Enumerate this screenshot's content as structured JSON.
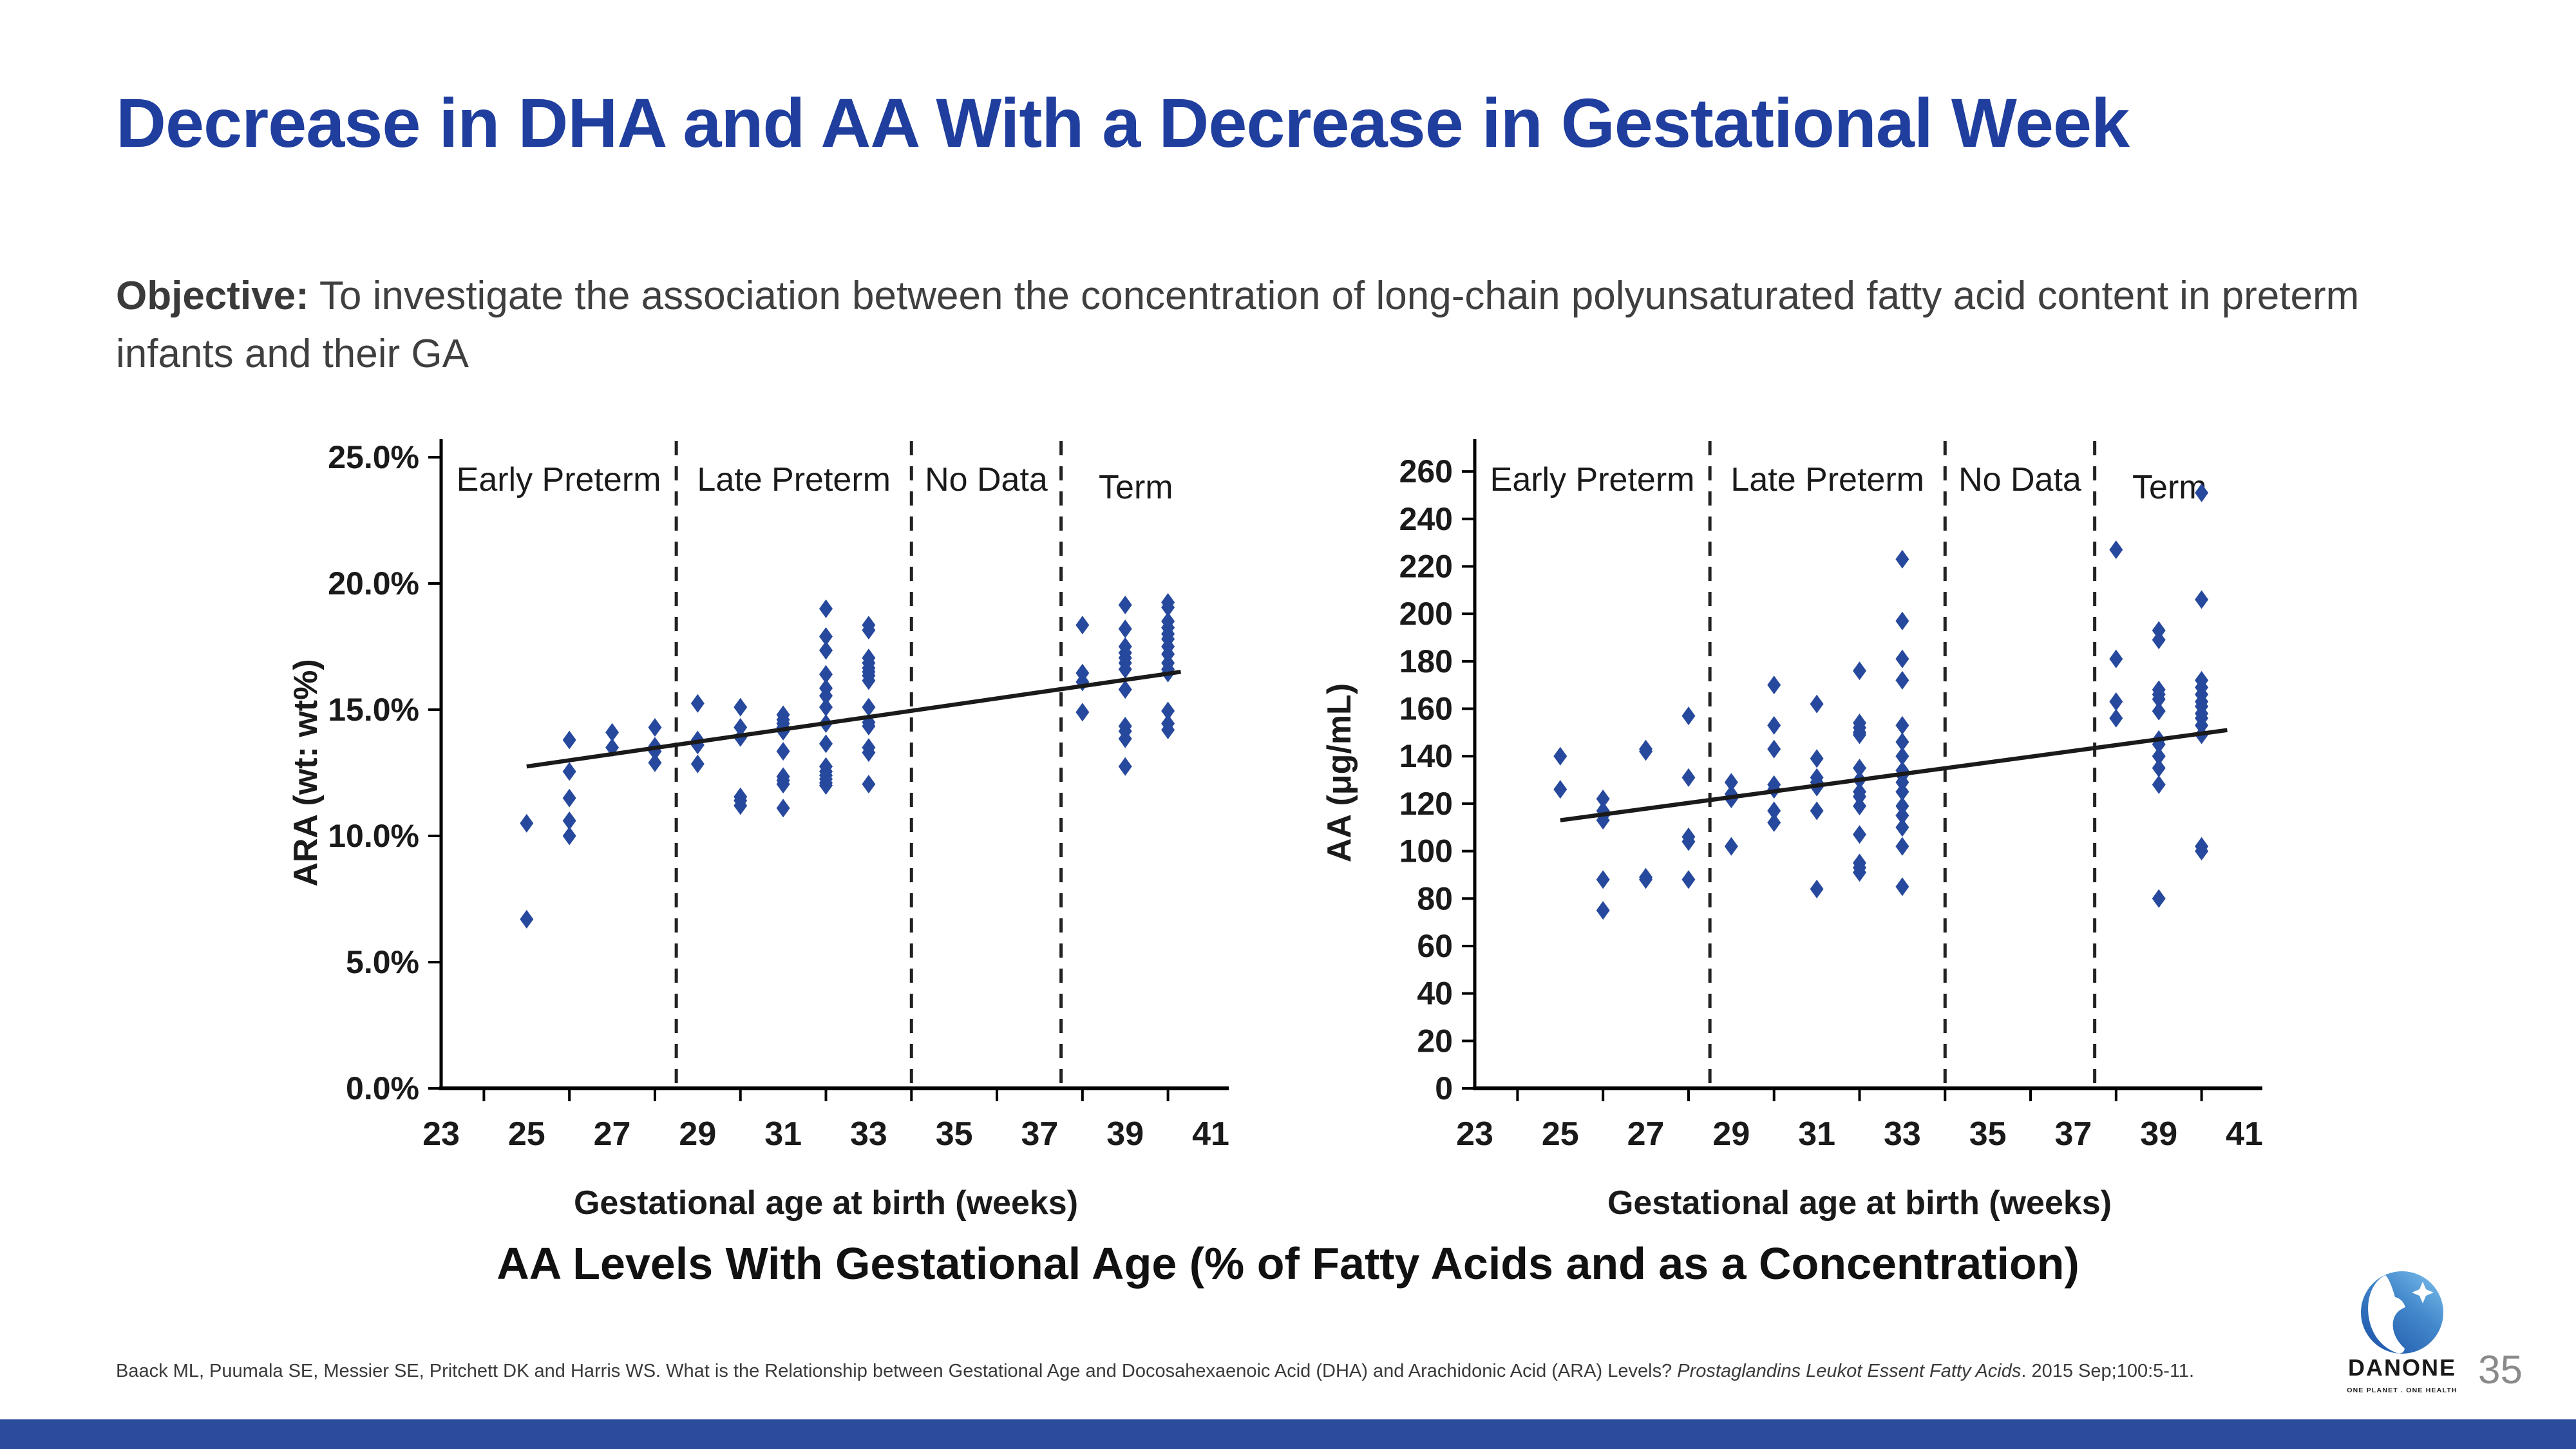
{
  "slide": {
    "title": "Decrease in DHA and AA With a Decrease in Gestational Week",
    "title_color": "#1F3E9E",
    "objective": {
      "label": "Objective:",
      "text": " To investigate the association between the concentration of long-chain polyunsaturated fatty acid content in preterm infants and their GA"
    },
    "caption": "AA Levels With Gestational Age (% of Fatty Acids and as a Concentration)",
    "citation": {
      "prefix": "Baack ML, Puumala SE, Messier SE, Pritchett DK and Harris WS. What is the Relationship between Gestational Age and Docosahexaenoic Acid (DHA) and Arachidonic Acid (ARA) Levels? ",
      "journal": "Prostaglandins Leukot Essent Fatty Acids",
      "suffix": ". 2015 Sep;100:5-11."
    },
    "page_number": "35",
    "footer_bar_color": "#2B4B9D"
  },
  "logo": {
    "brand": "DANONE",
    "tagline": "ONE PLANET . ONE HEALTH",
    "globe_top_color": "#7FC3EE",
    "globe_bottom_color": "#2058AC",
    "wordmark_color": "#2456A4",
    "tagline_color": "#3E9AD5"
  },
  "chart_data": [
    {
      "type": "scatter",
      "title": "",
      "xlabel": "Gestational age at birth (weeks)",
      "ylabel": "ARA (wt: wt%)",
      "xlim": [
        23,
        41
      ],
      "ylim": [
        0,
        25
      ],
      "xticks": [
        23,
        25,
        27,
        29,
        31,
        33,
        35,
        37,
        39,
        41
      ],
      "xtick_marks": [
        24,
        26,
        28,
        30,
        32,
        34,
        36,
        38,
        40
      ],
      "yticks": [
        {
          "v": 0,
          "label": "0.0%"
        },
        {
          "v": 5,
          "label": "5.0%"
        },
        {
          "v": 10,
          "label": "10.0%"
        },
        {
          "v": 15,
          "label": "15.0%"
        },
        {
          "v": 20,
          "label": "20.0%"
        },
        {
          "v": 25,
          "label": "25.0%"
        }
      ],
      "dividers": [
        28.5,
        34,
        37.5
      ],
      "regions": [
        {
          "label": "Early Preterm",
          "x": 25.75,
          "dy": 0
        },
        {
          "label": "Late Preterm",
          "x": 31.25,
          "dy": 0
        },
        {
          "label": "No Data",
          "x": 35.75,
          "dy": 0
        },
        {
          "label": "Term",
          "x": 39.25,
          "dy": 12
        }
      ],
      "trend": {
        "x1": 25,
        "y1": 12.75,
        "x2": 40.3,
        "y2": 16.5
      },
      "marker_color": "#27499D",
      "trend_color": "#1a1a1a",
      "grid": false,
      "legend": "none",
      "points": [
        [
          25,
          10.5
        ],
        [
          25,
          6.7
        ],
        [
          26,
          13.8
        ],
        [
          26,
          12.55
        ],
        [
          26,
          11.5
        ],
        [
          26,
          10.6
        ],
        [
          26,
          10.0
        ],
        [
          27,
          14.1
        ],
        [
          27,
          13.5
        ],
        [
          28,
          14.3
        ],
        [
          28,
          13.55
        ],
        [
          28,
          13.35
        ],
        [
          28,
          12.9
        ],
        [
          29,
          15.25
        ],
        [
          29,
          13.8
        ],
        [
          29,
          13.6
        ],
        [
          29,
          12.85
        ],
        [
          30,
          15.1
        ],
        [
          30,
          14.3
        ],
        [
          30,
          13.9
        ],
        [
          30,
          11.55
        ],
        [
          30,
          11.4
        ],
        [
          30,
          11.2
        ],
        [
          31,
          14.8
        ],
        [
          31,
          14.6
        ],
        [
          31,
          14.45
        ],
        [
          31,
          14.3
        ],
        [
          31,
          14.15
        ],
        [
          31,
          13.35
        ],
        [
          31,
          12.35
        ],
        [
          31,
          12.2
        ],
        [
          31,
          12.05
        ],
        [
          31,
          11.1
        ],
        [
          32,
          19.0
        ],
        [
          32,
          17.9
        ],
        [
          32,
          17.35
        ],
        [
          32,
          16.4
        ],
        [
          32,
          15.85
        ],
        [
          32,
          15.55
        ],
        [
          32,
          15.1
        ],
        [
          32,
          14.45
        ],
        [
          32,
          13.65
        ],
        [
          32,
          12.75
        ],
        [
          32,
          12.55
        ],
        [
          32,
          12.4
        ],
        [
          32,
          12.25
        ],
        [
          32,
          12.1
        ],
        [
          32,
          12.0
        ],
        [
          33,
          18.35
        ],
        [
          33,
          18.15
        ],
        [
          33,
          17.05
        ],
        [
          33,
          16.85
        ],
        [
          33,
          16.65
        ],
        [
          33,
          16.5
        ],
        [
          33,
          16.35
        ],
        [
          33,
          16.15
        ],
        [
          33,
          15.1
        ],
        [
          33,
          14.5
        ],
        [
          33,
          14.35
        ],
        [
          33,
          13.5
        ],
        [
          33,
          13.3
        ],
        [
          33,
          12.05
        ],
        [
          38,
          18.35
        ],
        [
          38,
          16.45
        ],
        [
          38,
          16.1
        ],
        [
          38,
          14.9
        ],
        [
          39,
          19.15
        ],
        [
          39,
          18.2
        ],
        [
          39,
          17.5
        ],
        [
          39,
          17.25
        ],
        [
          39,
          17.05
        ],
        [
          39,
          16.85
        ],
        [
          39,
          16.6
        ],
        [
          39,
          15.8
        ],
        [
          39,
          14.35
        ],
        [
          39,
          14.15
        ],
        [
          39,
          13.85
        ],
        [
          39,
          12.75
        ],
        [
          40,
          19.25
        ],
        [
          40,
          19.05
        ],
        [
          40,
          18.5
        ],
        [
          40,
          18.25
        ],
        [
          40,
          18.0
        ],
        [
          40,
          17.8
        ],
        [
          40,
          17.5
        ],
        [
          40,
          17.2
        ],
        [
          40,
          16.85
        ],
        [
          40,
          16.6
        ],
        [
          40,
          16.45
        ],
        [
          40,
          14.95
        ],
        [
          40,
          14.45
        ],
        [
          40,
          14.2
        ]
      ]
    },
    {
      "type": "scatter",
      "title": "",
      "xlabel": "Gestational age at birth (weeks)",
      "ylabel": "AA (μg/mL)",
      "xlim": [
        23,
        41
      ],
      "ylim": [
        0,
        266
      ],
      "xticks": [
        23,
        25,
        27,
        29,
        31,
        33,
        35,
        37,
        39,
        41
      ],
      "xtick_marks": [
        24,
        26,
        28,
        30,
        32,
        34,
        36,
        38,
        40
      ],
      "yticks": [
        {
          "v": 0,
          "label": "0"
        },
        {
          "v": 20,
          "label": "20"
        },
        {
          "v": 40,
          "label": "40"
        },
        {
          "v": 60,
          "label": "60"
        },
        {
          "v": 80,
          "label": "80"
        },
        {
          "v": 100,
          "label": "100"
        },
        {
          "v": 120,
          "label": "120"
        },
        {
          "v": 140,
          "label": "140"
        },
        {
          "v": 160,
          "label": "160"
        },
        {
          "v": 180,
          "label": "180"
        },
        {
          "v": 200,
          "label": "200"
        },
        {
          "v": 220,
          "label": "220"
        },
        {
          "v": 240,
          "label": "240"
        },
        {
          "v": 260,
          "label": "260"
        }
      ],
      "dividers": [
        28.5,
        34,
        37.5
      ],
      "regions": [
        {
          "label": "Early Preterm",
          "x": 25.75,
          "dy": 0
        },
        {
          "label": "Late Preterm",
          "x": 31.25,
          "dy": 0
        },
        {
          "label": "No Data",
          "x": 35.75,
          "dy": 0
        },
        {
          "label": "Term",
          "x": 39.25,
          "dy": 12
        }
      ],
      "trend": {
        "x1": 25,
        "y1": 113,
        "x2": 40.6,
        "y2": 151
      },
      "marker_color": "#27499D",
      "trend_color": "#1a1a1a",
      "grid": false,
      "legend": "none",
      "points": [
        [
          25,
          140
        ],
        [
          25,
          126
        ],
        [
          26,
          122
        ],
        [
          26,
          117
        ],
        [
          26,
          115
        ],
        [
          26,
          113
        ],
        [
          26,
          88
        ],
        [
          26,
          75
        ],
        [
          27,
          143
        ],
        [
          27,
          142
        ],
        [
          27,
          89
        ],
        [
          27,
          88
        ],
        [
          28,
          157
        ],
        [
          28,
          131
        ],
        [
          28,
          106
        ],
        [
          28,
          104
        ],
        [
          28,
          88
        ],
        [
          29,
          129
        ],
        [
          29,
          124
        ],
        [
          29,
          122
        ],
        [
          29,
          102
        ],
        [
          30,
          170
        ],
        [
          30,
          153
        ],
        [
          30,
          143
        ],
        [
          30,
          128
        ],
        [
          30,
          126
        ],
        [
          30,
          117
        ],
        [
          30,
          112
        ],
        [
          31,
          162
        ],
        [
          31,
          139
        ],
        [
          31,
          131
        ],
        [
          31,
          129
        ],
        [
          31,
          127
        ],
        [
          31,
          117
        ],
        [
          31,
          84
        ],
        [
          32,
          176
        ],
        [
          32,
          154
        ],
        [
          32,
          152
        ],
        [
          32,
          150
        ],
        [
          32,
          149
        ],
        [
          32,
          135
        ],
        [
          32,
          130
        ],
        [
          32,
          125
        ],
        [
          32,
          123
        ],
        [
          32,
          119
        ],
        [
          32,
          107
        ],
        [
          32,
          95
        ],
        [
          32,
          93
        ],
        [
          32,
          91
        ],
        [
          33,
          223
        ],
        [
          33,
          197
        ],
        [
          33,
          181
        ],
        [
          33,
          172
        ],
        [
          33,
          153
        ],
        [
          33,
          146
        ],
        [
          33,
          140
        ],
        [
          33,
          134
        ],
        [
          33,
          132
        ],
        [
          33,
          129
        ],
        [
          33,
          125
        ],
        [
          33,
          119
        ],
        [
          33,
          115
        ],
        [
          33,
          110
        ],
        [
          33,
          102
        ],
        [
          33,
          85
        ],
        [
          38,
          227
        ],
        [
          38,
          181
        ],
        [
          38,
          163
        ],
        [
          38,
          156
        ],
        [
          39,
          193
        ],
        [
          39,
          189
        ],
        [
          39,
          168
        ],
        [
          39,
          166
        ],
        [
          39,
          164
        ],
        [
          39,
          159
        ],
        [
          39,
          147
        ],
        [
          39,
          145
        ],
        [
          39,
          140
        ],
        [
          39,
          135
        ],
        [
          39,
          128
        ],
        [
          39,
          80
        ],
        [
          40,
          251
        ],
        [
          40,
          206
        ],
        [
          40,
          172
        ],
        [
          40,
          169
        ],
        [
          40,
          166
        ],
        [
          40,
          163
        ],
        [
          40,
          161
        ],
        [
          40,
          158
        ],
        [
          40,
          156
        ],
        [
          40,
          153
        ],
        [
          40,
          149
        ],
        [
          40,
          102
        ],
        [
          40,
          100
        ]
      ]
    }
  ]
}
